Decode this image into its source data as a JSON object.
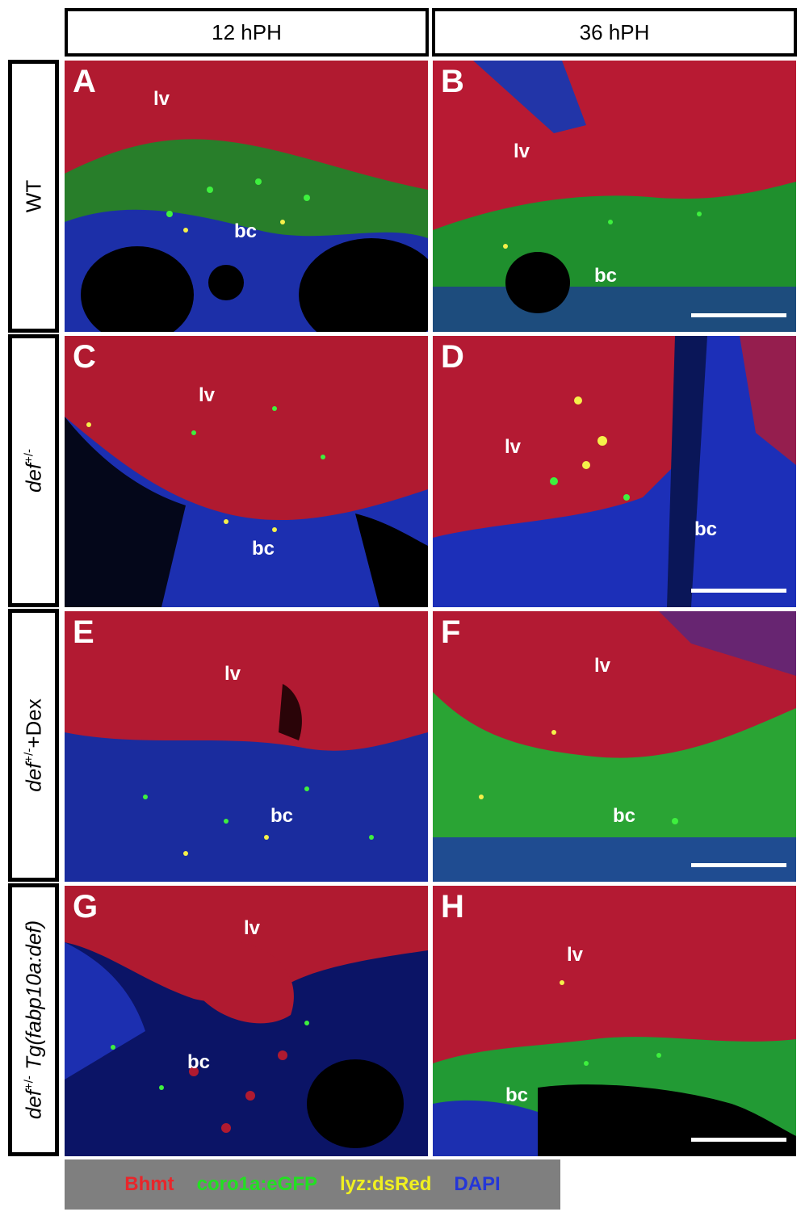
{
  "column_headers": [
    "12 hPH",
    "36 hPH"
  ],
  "rows": [
    {
      "label": "WT",
      "label_italic_part": "",
      "label_sup": "",
      "label_suffix": ""
    },
    {
      "label": "def",
      "label_italic_part": "def",
      "label_sup": "+/-",
      "label_suffix": ""
    },
    {
      "label": "def+/-+Dex",
      "label_italic_part": "def",
      "label_sup": "+/-",
      "label_suffix": "+Dex"
    },
    {
      "label": "def+/- Tg(fabp10a:def)",
      "label_italic_part": "def",
      "label_sup": "+/-",
      "label_suffix": " Tg(fabp10a:def)"
    }
  ],
  "panels": [
    {
      "letter": "A",
      "lv": "lv",
      "bc": "bc",
      "scale_bar": false
    },
    {
      "letter": "B",
      "lv": "lv",
      "bc": "bc",
      "scale_bar": true
    },
    {
      "letter": "C",
      "lv": "lv",
      "bc": "bc",
      "scale_bar": false
    },
    {
      "letter": "D",
      "lv": "lv",
      "bc": "bc",
      "scale_bar": true
    },
    {
      "letter": "E",
      "lv": "lv",
      "bc": "bc",
      "scale_bar": false
    },
    {
      "letter": "F",
      "lv": "lv",
      "bc": "bc",
      "scale_bar": true
    },
    {
      "letter": "G",
      "lv": "lv",
      "bc": "bc",
      "scale_bar": false
    },
    {
      "letter": "H",
      "lv": "lv",
      "bc": "bc",
      "scale_bar": true
    }
  ],
  "legend": [
    {
      "text": "Bhmt",
      "color": "#e8262b"
    },
    {
      "text": "coro1a:eGFP",
      "color": "#22e022"
    },
    {
      "text": "lyz:dsRed",
      "color": "#f0f020"
    },
    {
      "text": "DAPI",
      "color": "#2436d8"
    }
  ],
  "colors": {
    "red_channel": "#b5172c",
    "green_channel": "#2fd12f",
    "blue_channel": "#1f2fb8",
    "yellow_channel": "#f5f04a"
  }
}
